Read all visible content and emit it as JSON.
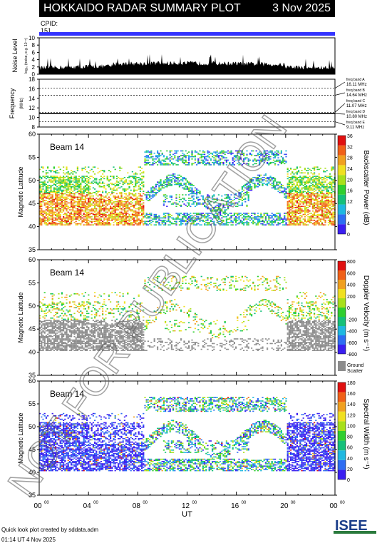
{
  "header": {
    "title": "HOKKAIDO RADAR SUMMARY PLOT",
    "date": "3 Nov 2025"
  },
  "cpid": {
    "label": "CPID:",
    "value": "151"
  },
  "noise": {
    "ylabel": "Noise Level",
    "sublabel": "log₁₀ (noise, e.g. 10⁻⁶)",
    "ticks": [
      "0",
      "2",
      "4",
      "6",
      "8",
      "10"
    ]
  },
  "frequency": {
    "ylabel": "Frequency",
    "unit": "(MHz)",
    "ticks": [
      "8",
      "10",
      "12",
      "14",
      "16",
      "18"
    ],
    "bands": [
      {
        "label": "freq band A",
        "value": "16.11 MHz"
      },
      {
        "label": "freq band B",
        "value": "14.64 MHz"
      },
      {
        "label": "freq band C",
        "value": "11.07 MHz"
      },
      {
        "label": "freq band D",
        "value": "10.80 MHz"
      },
      {
        "label": "freq band E",
        "value": "9.11 MHz"
      }
    ]
  },
  "panels": [
    {
      "id": "power",
      "beam": "Beam 14",
      "ylabel": "Magnetic Latitude",
      "cbar_label": "Backscatter Power (dB)",
      "cbar_ticks": [
        "0",
        "4",
        "8",
        "12",
        "16",
        "20",
        "24",
        "28",
        "32",
        "36"
      ]
    },
    {
      "id": "velocity",
      "beam": "Beam 14",
      "ylabel": "Magnetic Latitude",
      "cbar_label": "Doppler Velocity (m s⁻¹)",
      "cbar_ticks": [
        "800",
        "600",
        "400",
        "200",
        "0",
        "-200",
        "-400",
        "-600",
        "-800"
      ],
      "ground_label": "Ground",
      "scatter_label": "Scatter"
    },
    {
      "id": "width",
      "beam": "Beam 14",
      "ylabel": "Magnetic Latitude",
      "cbar_label": "Spectral Width (m s⁻¹)",
      "cbar_ticks": [
        "0",
        "20",
        "40",
        "60",
        "80",
        "100",
        "120",
        "140",
        "160",
        "180"
      ]
    }
  ],
  "lat_ticks": [
    "35",
    "40",
    "45",
    "50",
    "55",
    "60"
  ],
  "x_ticks": [
    "00",
    "04",
    "08",
    "12",
    "16",
    "20",
    "00"
  ],
  "x_tick_sup": "00",
  "xlabel": "UT",
  "watermark": "NOT FOR PUBLICATION",
  "footer": {
    "line1": "Quick look plot created by sddata.adm",
    "line2": "01:14 UT  4 Nov 2025"
  },
  "logo_text": "ISEE",
  "colors": {
    "ground_scatter": "#8c8c8c",
    "cpid_bar": "#3333ff"
  },
  "chart_data": [
    {
      "type": "line",
      "title": "",
      "ylabel": "Noise Level",
      "ylim": [
        0,
        10
      ],
      "xlim": [
        "00 UT",
        "24 UT"
      ],
      "series": [
        {
          "values_approx": [
            1.2,
            2.0,
            2.3,
            2.5,
            2.0,
            1.6,
            1.2
          ]
        }
      ],
      "x": [
        0,
        4,
        8,
        12,
        16,
        20,
        24
      ]
    },
    {
      "type": "line",
      "ylabel": "Frequency (MHz)",
      "ylim": [
        8,
        18
      ],
      "series": [
        {
          "name": "freq band D",
          "values": [
            10.8
          ]
        }
      ]
    },
    {
      "type": "heatmap",
      "title": "Beam 14",
      "ylabel": "Magnetic Latitude",
      "xlabel": "UT",
      "ylim": [
        35,
        60
      ],
      "xlim": [
        0,
        24
      ],
      "colorbar": {
        "label": "Backscatter Power (dB)",
        "range": [
          0,
          36
        ]
      }
    },
    {
      "type": "heatmap",
      "title": "Beam 14",
      "ylabel": "Magnetic Latitude",
      "xlabel": "UT",
      "ylim": [
        35,
        60
      ],
      "xlim": [
        0,
        24
      ],
      "colorbar": {
        "label": "Doppler Velocity (m s⁻¹)",
        "range": [
          -800,
          800
        ]
      }
    },
    {
      "type": "heatmap",
      "title": "Beam 14",
      "ylabel": "Magnetic Latitude",
      "xlabel": "UT",
      "ylim": [
        35,
        60
      ],
      "xlim": [
        0,
        24
      ],
      "colorbar": {
        "label": "Spectral Width (m s⁻¹)",
        "range": [
          0,
          180
        ]
      }
    }
  ]
}
